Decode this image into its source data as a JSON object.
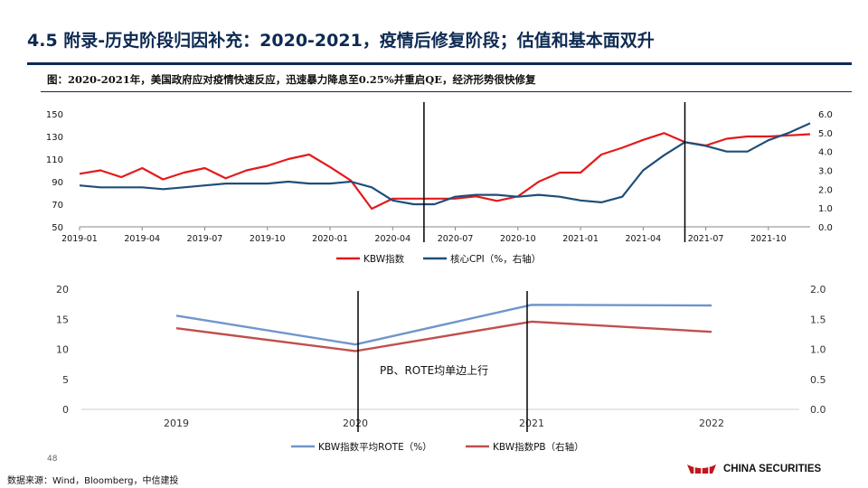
{
  "header": {
    "title": "4.5 附录-历史阶段归因补充：2020-2021，疫情后修复阶段；估值和基本面双升",
    "caption": "图：2020-2021年，美国政府应对疫情快速反应，迅速暴力降息至0.25%并重启QE，经济形势很快修复"
  },
  "chart_data": [
    {
      "type": "line",
      "title": "",
      "x_tick_labels": [
        "2019-01",
        "2019-04",
        "2019-07",
        "2019-10",
        "2020-01",
        "2020-04",
        "2020-07",
        "2020-10",
        "2021-01",
        "2021-04",
        "2021-07",
        "2021-10"
      ],
      "x_tick_months": [
        0,
        3,
        6,
        9,
        12,
        15,
        18,
        21,
        24,
        27,
        30,
        33
      ],
      "left_axis": {
        "ticks": [
          50,
          70,
          90,
          110,
          130,
          150
        ],
        "ylim": [
          50,
          150
        ]
      },
      "right_axis": {
        "ticks": [
          "0.0",
          "1.0",
          "2.0",
          "3.0",
          "4.0",
          "5.0",
          "6.0"
        ],
        "ylim": [
          0,
          6
        ]
      },
      "series": [
        {
          "name": "KBW指数",
          "axis": "left",
          "color": "#e31a1c",
          "points": [
            [
              0,
              97
            ],
            [
              1,
              100
            ],
            [
              2,
              94
            ],
            [
              3,
              102
            ],
            [
              4,
              92
            ],
            [
              5,
              98
            ],
            [
              6,
              102
            ],
            [
              7,
              93
            ],
            [
              8,
              100
            ],
            [
              9,
              104
            ],
            [
              10,
              110
            ],
            [
              11,
              114
            ],
            [
              12,
              103
            ],
            [
              13,
              91
            ],
            [
              14,
              66
            ],
            [
              15,
              75
            ],
            [
              16,
              75
            ],
            [
              17,
              75
            ],
            [
              18,
              75
            ],
            [
              19,
              77
            ],
            [
              20,
              73
            ],
            [
              21,
              77
            ],
            [
              22,
              90
            ],
            [
              23,
              98
            ],
            [
              24,
              98
            ],
            [
              25,
              114
            ],
            [
              26,
              120
            ],
            [
              27,
              127
            ],
            [
              28,
              133
            ],
            [
              29,
              125
            ],
            [
              30,
              122
            ],
            [
              31,
              128
            ],
            [
              32,
              130
            ],
            [
              33,
              130
            ],
            [
              34,
              131
            ],
            [
              35,
              132
            ]
          ]
        },
        {
          "name": "核心CPI（%，右轴）",
          "axis": "right",
          "color": "#1f4e79",
          "points": [
            [
              0,
              2.2
            ],
            [
              1,
              2.1
            ],
            [
              2,
              2.1
            ],
            [
              3,
              2.1
            ],
            [
              4,
              2.0
            ],
            [
              5,
              2.1
            ],
            [
              6,
              2.2
            ],
            [
              7,
              2.3
            ],
            [
              8,
              2.3
            ],
            [
              9,
              2.3
            ],
            [
              10,
              2.4
            ],
            [
              11,
              2.3
            ],
            [
              12,
              2.3
            ],
            [
              13,
              2.4
            ],
            [
              14,
              2.1
            ],
            [
              15,
              1.4
            ],
            [
              16,
              1.2
            ],
            [
              17,
              1.2
            ],
            [
              18,
              1.6
            ],
            [
              19,
              1.7
            ],
            [
              20,
              1.7
            ],
            [
              21,
              1.6
            ],
            [
              22,
              1.7
            ],
            [
              23,
              1.6
            ],
            [
              24,
              1.4
            ],
            [
              25,
              1.3
            ],
            [
              26,
              1.6
            ],
            [
              27,
              3.0
            ],
            [
              28,
              3.8
            ],
            [
              29,
              4.5
            ],
            [
              30,
              4.3
            ],
            [
              31,
              4.0
            ],
            [
              32,
              4.0
            ],
            [
              33,
              4.6
            ],
            [
              34,
              5.0
            ],
            [
              35,
              5.5
            ]
          ]
        }
      ],
      "markers_at_month": [
        16.5,
        29
      ],
      "legend": [
        "KBW指数",
        "核心CPI（%，右轴）"
      ]
    },
    {
      "type": "line",
      "title": "",
      "categories": [
        "2019",
        "2020",
        "2021",
        "2022"
      ],
      "left_axis": {
        "ticks": [
          0,
          5,
          10,
          15,
          20
        ],
        "ylim": [
          0,
          20
        ]
      },
      "right_axis": {
        "ticks": [
          "0.0",
          "0.5",
          "1.0",
          "1.5",
          "2.0"
        ],
        "ylim": [
          0,
          2
        ]
      },
      "series": [
        {
          "name": "KBW指数平均ROTE（%）",
          "axis": "left",
          "color": "#6f95cc",
          "values": [
            15.6,
            10.8,
            17.4,
            17.3
          ]
        },
        {
          "name": "KBW指数PB（右轴）",
          "axis": "right",
          "color": "#c0504d",
          "values": [
            1.35,
            0.97,
            1.46,
            1.29
          ]
        }
      ],
      "markers_at_category": [
        1,
        2
      ],
      "annotation": "PB、ROTE均单边上行",
      "legend": [
        "KBW指数平均ROTE（%）",
        "KBW指数PB（右轴）"
      ]
    }
  ],
  "footer": {
    "page_number": "48",
    "source": "数据来源：Wind，Bloomberg，中信建投",
    "logo_text": "CHINA SECURITIES",
    "logo_color": "#c0161d"
  }
}
